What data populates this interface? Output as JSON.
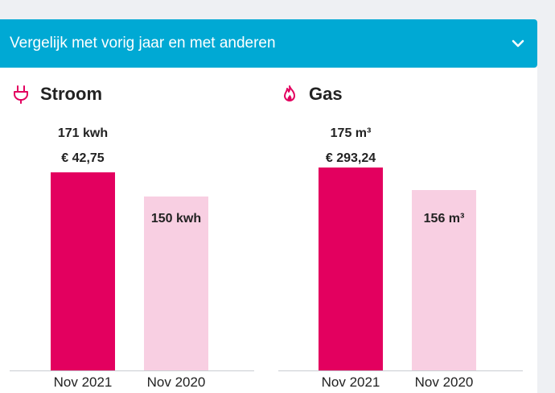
{
  "header": {
    "title": "Vergelijk met vorig jaar en met anderen",
    "toggle_icon": "chevron-down-icon"
  },
  "colors": {
    "header_bg": "#00a9d4",
    "current_year": "#e3005f",
    "previous_year": "#f8cfe2"
  },
  "chart_data": [
    {
      "type": "bar",
      "title": "Stroom",
      "icon": "plug-icon",
      "categories": [
        "Nov 2021",
        "Nov 2020"
      ],
      "values": [
        171,
        150
      ],
      "unit": "kwh",
      "value_labels": [
        "171 kwh",
        "150 kwh"
      ],
      "cost_labels": [
        "€ 42,75",
        ""
      ],
      "grid": false
    },
    {
      "type": "bar",
      "title": "Gas",
      "icon": "flame-icon",
      "categories": [
        "Nov 2021",
        "Nov 2020"
      ],
      "values": [
        175,
        156
      ],
      "unit": "m³",
      "value_labels": [
        "175 m³",
        "156 m³"
      ],
      "cost_labels": [
        "€ 293,24",
        ""
      ],
      "grid": false
    }
  ]
}
